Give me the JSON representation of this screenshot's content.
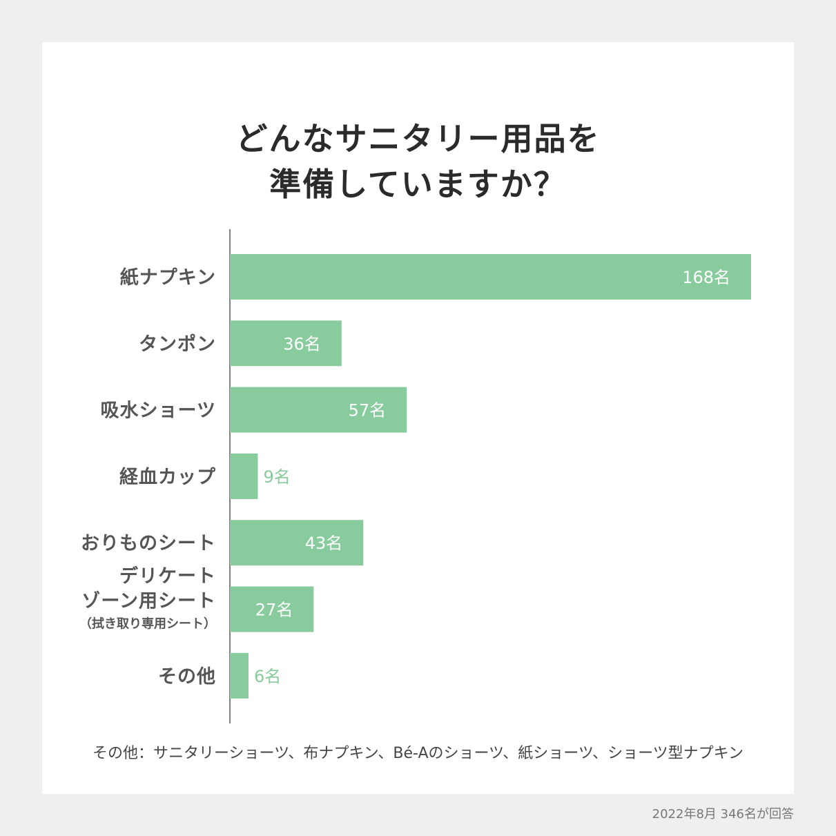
{
  "title": {
    "line1": "どんなサニタリー用品を",
    "line2": "準備していますか？"
  },
  "chart_data": {
    "type": "bar",
    "orientation": "horizontal",
    "categories": [
      {
        "lines": [
          "紙ナプキン"
        ]
      },
      {
        "lines": [
          "タンポン"
        ]
      },
      {
        "lines": [
          "吸水ショーツ"
        ]
      },
      {
        "lines": [
          "経血カップ"
        ]
      },
      {
        "lines": [
          "おりものシート"
        ]
      },
      {
        "lines": [
          "デリケート",
          "ゾーン用シート"
        ],
        "sub": "（拭き取り専用シート）"
      },
      {
        "lines": [
          "その他"
        ]
      }
    ],
    "values": [
      168,
      36,
      57,
      9,
      43,
      27,
      6
    ],
    "value_labels": [
      "168名",
      "36名",
      "57名",
      "9名",
      "43名",
      "27名",
      "6名"
    ],
    "bar_color": "#88cb9d",
    "value_label_color_inside": "#ffffff",
    "value_label_color_outside": "#88cb9d",
    "grid": false
  },
  "note": "その他：サニタリーショーツ、布ナプキン、Bé-Aのショーツ、紙ショーツ、ショーツ型ナプキン",
  "footer": "2022年8月  346名が回答"
}
